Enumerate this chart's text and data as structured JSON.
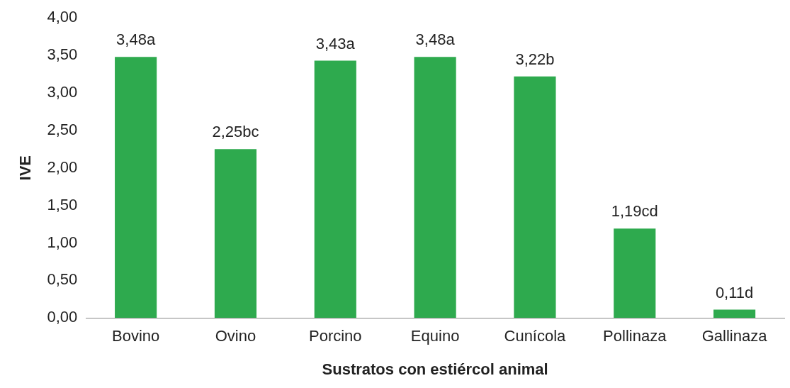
{
  "chart_data": {
    "type": "bar",
    "xlabel": "Sustratos con estiércol animal",
    "ylabel": "IVE",
    "categories": [
      "Bovino",
      "Ovino",
      "Porcino",
      "Equino",
      "Cunícola",
      "Pollinaza",
      "Gallinaza"
    ],
    "values": [
      3.48,
      2.25,
      3.43,
      3.48,
      3.22,
      1.19,
      0.11
    ],
    "value_labels": [
      "3,48a",
      "2,25bc",
      "3,43a",
      "3,48a",
      "3,22b",
      "1,19cd",
      "0,11d"
    ],
    "color": "#2eaa4e",
    "ylim": [
      0,
      4
    ],
    "yticks": [
      {
        "value": 0,
        "label": "0,00"
      },
      {
        "value": 0.5,
        "label": "0,50"
      },
      {
        "value": 1,
        "label": "1,00"
      },
      {
        "value": 1.5,
        "label": "1,50"
      },
      {
        "value": 2,
        "label": "2,00"
      },
      {
        "value": 2.5,
        "label": "2,50"
      },
      {
        "value": 3,
        "label": "3,00"
      },
      {
        "value": 3.5,
        "label": "3,50"
      },
      {
        "value": 4,
        "label": "4,00"
      }
    ],
    "grid": false,
    "legend": false
  }
}
